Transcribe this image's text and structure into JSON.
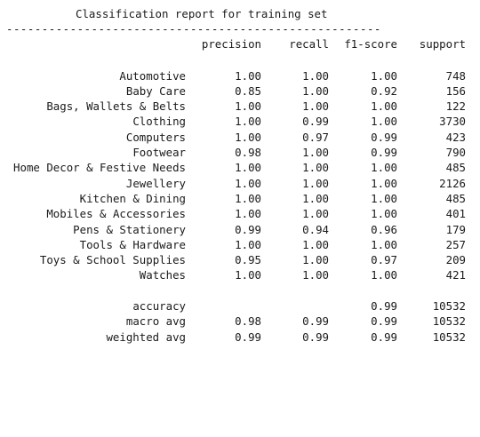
{
  "report": {
    "title": "Classification report for training set",
    "divider": "-----------------------------------------------------",
    "headers": {
      "precision": "precision",
      "recall": "recall",
      "f1": "f1-score",
      "support": "support"
    },
    "classes": [
      {
        "label": "Automotive",
        "precision": "1.00",
        "recall": "1.00",
        "f1": "1.00",
        "support": "748"
      },
      {
        "label": "Baby Care",
        "precision": "0.85",
        "recall": "1.00",
        "f1": "0.92",
        "support": "156"
      },
      {
        "label": "Bags, Wallets & Belts",
        "precision": "1.00",
        "recall": "1.00",
        "f1": "1.00",
        "support": "122"
      },
      {
        "label": "Clothing",
        "precision": "1.00",
        "recall": "0.99",
        "f1": "1.00",
        "support": "3730"
      },
      {
        "label": "Computers",
        "precision": "1.00",
        "recall": "0.97",
        "f1": "0.99",
        "support": "423"
      },
      {
        "label": "Footwear",
        "precision": "0.98",
        "recall": "1.00",
        "f1": "0.99",
        "support": "790"
      },
      {
        "label": "Home Decor & Festive Needs",
        "precision": "1.00",
        "recall": "1.00",
        "f1": "1.00",
        "support": "485"
      },
      {
        "label": "Jewellery",
        "precision": "1.00",
        "recall": "1.00",
        "f1": "1.00",
        "support": "2126"
      },
      {
        "label": "Kitchen & Dining",
        "precision": "1.00",
        "recall": "1.00",
        "f1": "1.00",
        "support": "485"
      },
      {
        "label": "Mobiles & Accessories",
        "precision": "1.00",
        "recall": "1.00",
        "f1": "1.00",
        "support": "401"
      },
      {
        "label": "Pens & Stationery",
        "precision": "0.99",
        "recall": "0.94",
        "f1": "0.96",
        "support": "179"
      },
      {
        "label": "Tools & Hardware",
        "precision": "1.00",
        "recall": "1.00",
        "f1": "1.00",
        "support": "257"
      },
      {
        "label": "Toys & School Supplies",
        "precision": "0.95",
        "recall": "1.00",
        "f1": "0.97",
        "support": "209"
      },
      {
        "label": "Watches",
        "precision": "1.00",
        "recall": "1.00",
        "f1": "1.00",
        "support": "421"
      }
    ],
    "summary": [
      {
        "label": "accuracy",
        "precision": "",
        "recall": "",
        "f1": "0.99",
        "support": "10532"
      },
      {
        "label": "macro avg",
        "precision": "0.98",
        "recall": "0.99",
        "f1": "0.99",
        "support": "10532"
      },
      {
        "label": "weighted avg",
        "precision": "0.99",
        "recall": "0.99",
        "f1": "0.99",
        "support": "10532"
      }
    ]
  }
}
